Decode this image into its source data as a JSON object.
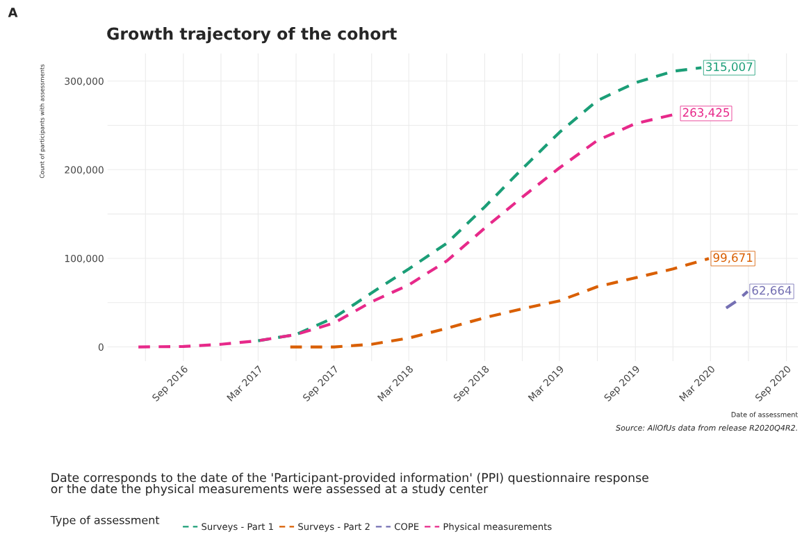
{
  "chart_data": {
    "type": "line",
    "title": "Growth trajectory of the cohort",
    "xlabel": "Date of assessment",
    "ylabel": "Count of participants with assessments",
    "legend_title": "Type of assessment",
    "series": [
      {
        "name": "Surveys - Part 1",
        "color": "#1b9e77",
        "x": [
          "2017-03-01",
          "2017-06-01",
          "2017-09-01",
          "2017-12-01",
          "2018-03-01",
          "2018-06-01",
          "2018-09-01",
          "2018-12-01",
          "2019-03-01",
          "2019-06-01",
          "2019-09-01",
          "2019-12-01",
          "2020-02-08"
        ],
        "values": [
          7000,
          14000,
          33000,
          61000,
          88000,
          117000,
          158000,
          201000,
          242000,
          278000,
          298000,
          311000,
          315007
        ],
        "value_labels": [
          null,
          null,
          null,
          null,
          null,
          null,
          null,
          null,
          null,
          null,
          null,
          null,
          "315,007"
        ]
      },
      {
        "name": "Surveys - Part 2",
        "color": "#d95f02",
        "x": [
          "2017-05-18",
          "2017-09-01",
          "2017-12-01",
          "2018-03-01",
          "2018-06-01",
          "2018-09-01",
          "2018-12-01",
          "2019-03-01",
          "2019-06-01",
          "2019-09-01",
          "2019-12-01",
          "2020-02-26"
        ],
        "values": [
          0,
          0,
          3000,
          10000,
          21000,
          33000,
          43000,
          52000,
          68000,
          78000,
          88000,
          99671
        ],
        "value_labels": [
          null,
          null,
          null,
          null,
          null,
          null,
          null,
          null,
          null,
          null,
          null,
          "99,671"
        ]
      },
      {
        "name": "COPE",
        "color": "#7570b3",
        "x": [
          "2020-04-08",
          "2020-05-07",
          "2020-05-30"
        ],
        "values": [
          44000,
          53000,
          62664
        ],
        "value_labels": [
          null,
          null,
          "62,664"
        ]
      },
      {
        "name": "Physical measurements",
        "color": "#e7298a",
        "x": [
          "2016-05-15",
          "2016-09-01",
          "2016-12-01",
          "2017-03-01",
          "2017-06-01",
          "2017-09-01",
          "2017-12-01",
          "2018-03-01",
          "2018-06-01",
          "2018-09-01",
          "2018-12-01",
          "2019-03-01",
          "2019-06-01",
          "2019-09-01",
          "2019-12-14"
        ],
        "values": [
          0,
          500,
          3000,
          7000,
          14000,
          27000,
          51000,
          70000,
          97000,
          134000,
          169000,
          202000,
          233000,
          252000,
          263425
        ],
        "value_labels": [
          null,
          null,
          null,
          null,
          null,
          null,
          null,
          null,
          null,
          null,
          null,
          null,
          null,
          null,
          "263,425"
        ]
      }
    ],
    "xlim": [
      "2016-03-01",
      "2020-09-29"
    ],
    "xticks": [
      {
        "value": "2016-06-01",
        "label": null
      },
      {
        "value": "2016-09-01",
        "label": "Sep 2016"
      },
      {
        "value": "2016-12-01",
        "label": null
      },
      {
        "value": "2017-03-01",
        "label": "Mar 2017"
      },
      {
        "value": "2017-06-01",
        "label": null
      },
      {
        "value": "2017-09-01",
        "label": "Sep 2017"
      },
      {
        "value": "2017-12-01",
        "label": null
      },
      {
        "value": "2018-03-01",
        "label": "Mar 2018"
      },
      {
        "value": "2018-06-01",
        "label": null
      },
      {
        "value": "2018-09-01",
        "label": "Sep 2018"
      },
      {
        "value": "2018-12-01",
        "label": null
      },
      {
        "value": "2019-03-01",
        "label": "Mar 2019"
      },
      {
        "value": "2019-06-01",
        "label": null
      },
      {
        "value": "2019-09-01",
        "label": "Sep 2019"
      },
      {
        "value": "2019-12-01",
        "label": null
      },
      {
        "value": "2020-03-01",
        "label": "Mar 2020"
      },
      {
        "value": "2020-06-01",
        "label": null
      },
      {
        "value": "2020-09-01",
        "label": "Sep 2020"
      }
    ],
    "ylim": [
      -16000,
      331000
    ],
    "yticks": [
      {
        "value": 0,
        "label": "0"
      },
      {
        "value": 50000,
        "label": null
      },
      {
        "value": 100000,
        "label": "100,000"
      },
      {
        "value": 150000,
        "label": null
      },
      {
        "value": 200000,
        "label": "200,000"
      },
      {
        "value": 250000,
        "label": null
      },
      {
        "value": 300000,
        "label": "300,000"
      }
    ],
    "grid": true,
    "legend": "bottom",
    "marker": "none",
    "line_style": "dashed",
    "annotations": [
      "Source: AllOfUs data from release R2020Q4R2.",
      "Date corresponds to the date of the 'Participant-provided information' (PPI) questionnaire response\nor the date the physical measurements were assessed at a study center",
      "A"
    ]
  }
}
